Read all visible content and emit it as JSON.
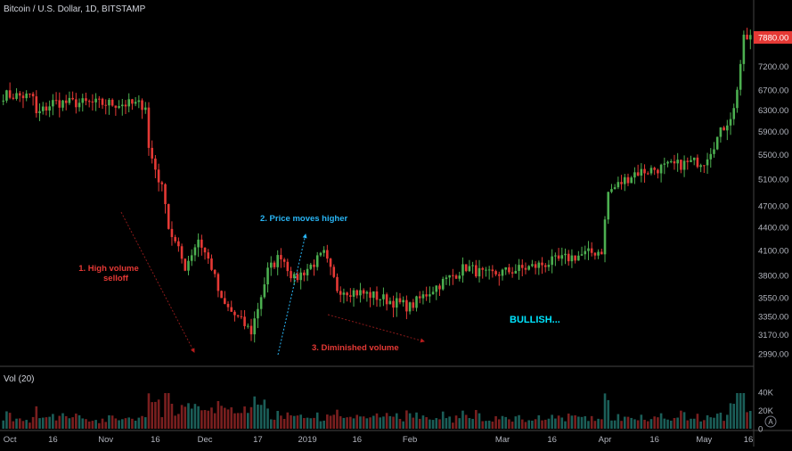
{
  "header": {
    "symbol_title": "Bitcoin / U.S. Dollar, 1D, BITSTAMP"
  },
  "price_badge": {
    "value": "7880.00",
    "color": "#e53935"
  },
  "volume_pane": {
    "label": "Vol (20)",
    "ticks": [
      "40K",
      "20K",
      "0"
    ]
  },
  "auto_button": {
    "label": "A"
  },
  "colors": {
    "up": "#26a69a",
    "down": "#ef5350",
    "up_body": "#4caf50",
    "down_body": "#e53935",
    "vol_up": "#1b5e58",
    "vol_down": "#7a1f1f"
  },
  "annotations": [
    {
      "id": "a1",
      "lines": [
        "1. High volume",
        "selloff"
      ],
      "color": "#e53935"
    },
    {
      "id": "a2",
      "lines": [
        "2. Price moves higher"
      ],
      "color": "#29b6f6"
    },
    {
      "id": "a3",
      "lines": [
        "3. Diminished volume"
      ],
      "color": "#e53935"
    },
    {
      "id": "a4",
      "lines": [
        "BULLISH..."
      ],
      "color": "#00e5ff"
    }
  ],
  "chart_data": {
    "type": "candlestick",
    "title": "Bitcoin / U.S. Dollar, 1D, BITSTAMP",
    "y_axis": {
      "scale": "log",
      "ticks": [
        2990,
        3170,
        3350,
        3550,
        3800,
        4100,
        4400,
        4700,
        5100,
        5500,
        5900,
        6300,
        6700,
        7200,
        7880
      ],
      "tick_labels": [
        "2990.00",
        "3170.00",
        "3350.00",
        "3550.00",
        "3800.00",
        "4100.00",
        "4400.00",
        "4700.00",
        "5100.00",
        "5500.00",
        "5900.00",
        "6300.00",
        "6700.00",
        "7200.00",
        "7880.00"
      ]
    },
    "x_axis": {
      "tick_labels": [
        "Oct",
        "16",
        "Nov",
        "16",
        "Dec",
        "17",
        "2019",
        "16",
        "Feb",
        "Mar",
        "16",
        "Apr",
        "16",
        "May",
        "16"
      ]
    },
    "price_anchors": [
      {
        "date": "2018-10-01",
        "close": 6600
      },
      {
        "date": "2018-10-10",
        "close": 6560
      },
      {
        "date": "2018-10-11",
        "close": 6200
      },
      {
        "date": "2018-10-16",
        "close": 6450
      },
      {
        "date": "2018-11-06",
        "close": 6420
      },
      {
        "date": "2018-11-13",
        "close": 6400
      },
      {
        "date": "2018-11-14",
        "close": 5600
      },
      {
        "date": "2018-11-19",
        "close": 4800
      },
      {
        "date": "2018-11-20",
        "close": 4400
      },
      {
        "date": "2018-11-25",
        "close": 3900
      },
      {
        "date": "2018-11-29",
        "close": 4250
      },
      {
        "date": "2018-12-03",
        "close": 3900
      },
      {
        "date": "2018-12-06",
        "close": 3500
      },
      {
        "date": "2018-12-15",
        "close": 3200
      },
      {
        "date": "2018-12-20",
        "close": 3850
      },
      {
        "date": "2018-12-24",
        "close": 4050
      },
      {
        "date": "2018-12-28",
        "close": 3750
      },
      {
        "date": "2019-01-06",
        "close": 4050
      },
      {
        "date": "2019-01-10",
        "close": 3650
      },
      {
        "date": "2019-01-20",
        "close": 3580
      },
      {
        "date": "2019-02-01",
        "close": 3450
      },
      {
        "date": "2019-02-08",
        "close": 3650
      },
      {
        "date": "2019-02-18",
        "close": 3900
      },
      {
        "date": "2019-02-24",
        "close": 3800
      },
      {
        "date": "2019-03-10",
        "close": 3900
      },
      {
        "date": "2019-03-20",
        "close": 4000
      },
      {
        "date": "2019-03-31",
        "close": 4100
      },
      {
        "date": "2019-04-02",
        "close": 4900
      },
      {
        "date": "2019-04-10",
        "close": 5200
      },
      {
        "date": "2019-04-20",
        "close": 5300
      },
      {
        "date": "2019-05-01",
        "close": 5400
      },
      {
        "date": "2019-05-10",
        "close": 6300
      },
      {
        "date": "2019-05-13",
        "close": 7800
      },
      {
        "date": "2019-05-15",
        "close": 7880
      }
    ],
    "volume_ylim": [
      0,
      40000
    ],
    "grid": false,
    "legend": "none"
  }
}
